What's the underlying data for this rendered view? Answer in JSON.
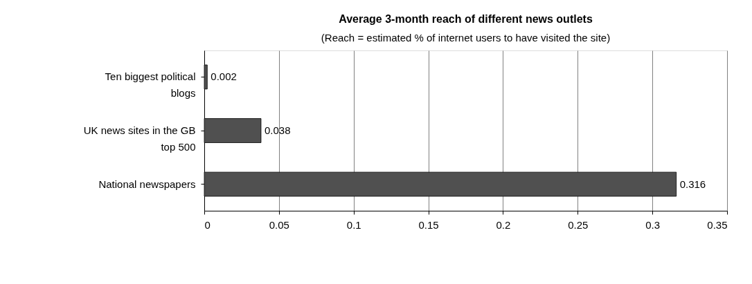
{
  "chart_data": {
    "type": "bar",
    "orientation": "horizontal",
    "title": "Average 3-month reach of different news outlets",
    "subtitle": "(Reach = estimated % of internet users to have visited the site)",
    "categories": [
      "Ten biggest political blogs",
      "UK news sites in the GB top 500",
      "National newspapers"
    ],
    "values": [
      0.002,
      0.038,
      0.316
    ],
    "color": "#505050",
    "xlim": [
      0,
      0.35
    ],
    "xticks": [
      0,
      0.05,
      0.1,
      0.15,
      0.2,
      0.25,
      0.3,
      0.35
    ],
    "grid": "x",
    "data_labels": true,
    "legend": false
  }
}
